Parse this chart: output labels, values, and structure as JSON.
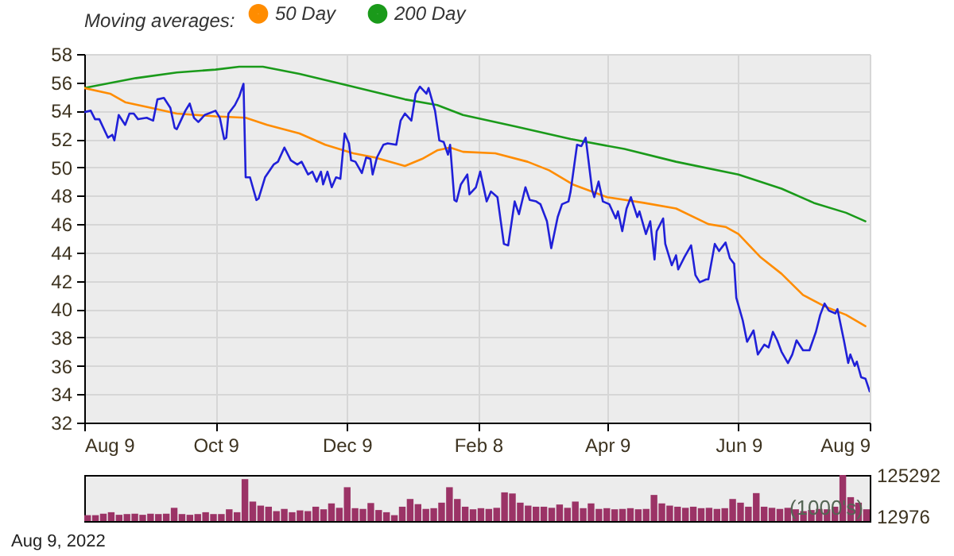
{
  "chart_data": [
    {
      "type": "line",
      "legend_title": "Moving averages:",
      "legend": "top",
      "grid": true,
      "xlim": [
        "2021-08-09",
        "2022-08-09"
      ],
      "xticks": [
        {
          "value": "2021-08-09",
          "label": "Aug 9"
        },
        {
          "value": "2021-10-09",
          "label": "Oct 9"
        },
        {
          "value": "2021-12-09",
          "label": "Dec 9"
        },
        {
          "value": "2022-02-08",
          "label": "Feb 8"
        },
        {
          "value": "2022-04-09",
          "label": "Apr 9"
        },
        {
          "value": "2022-06-09",
          "label": "Jun 9"
        },
        {
          "value": "2022-08-09",
          "label": "Aug 9"
        }
      ],
      "ylim": [
        32,
        58
      ],
      "yticks": [
        32,
        34,
        36,
        38,
        40,
        42,
        44,
        46,
        48,
        50,
        52,
        54,
        56,
        58
      ],
      "series": [
        {
          "color": "#2020d8",
          "x": [
            "2021-08-09",
            "2021-08-12",
            "2021-08-14",
            "2021-08-16",
            "2021-08-20",
            "2021-08-22",
            "2021-08-23",
            "2021-08-25",
            "2021-08-28",
            "2021-08-30",
            "2021-09-01",
            "2021-09-03",
            "2021-09-07",
            "2021-09-10",
            "2021-09-12",
            "2021-09-15",
            "2021-09-18",
            "2021-09-20",
            "2021-09-21",
            "2021-09-25",
            "2021-09-27",
            "2021-09-29",
            "2021-10-01",
            "2021-10-04",
            "2021-10-09",
            "2021-10-11",
            "2021-10-13",
            "2021-10-14",
            "2021-10-15",
            "2021-10-18",
            "2021-10-20",
            "2021-10-22",
            "2021-10-23",
            "2021-10-25",
            "2021-10-28",
            "2021-10-29",
            "2021-11-01",
            "2021-11-05",
            "2021-11-07",
            "2021-11-10",
            "2021-11-13",
            "2021-11-16",
            "2021-11-18",
            "2021-11-21",
            "2021-11-23",
            "2021-11-25",
            "2021-11-27",
            "2021-11-28",
            "2021-11-30",
            "2021-12-02",
            "2021-12-04",
            "2021-12-06",
            "2021-12-08",
            "2021-12-10",
            "2021-12-11",
            "2021-12-13",
            "2021-12-16",
            "2021-12-18",
            "2021-12-20",
            "2021-12-21",
            "2021-12-23",
            "2021-12-26",
            "2021-12-28",
            "2022-01-01",
            "2022-01-03",
            "2022-01-05",
            "2022-01-08",
            "2022-01-10",
            "2022-01-12",
            "2022-01-15",
            "2022-01-16",
            "2022-01-19",
            "2022-01-21",
            "2022-01-23",
            "2022-01-25",
            "2022-01-26",
            "2022-01-28",
            "2022-01-29",
            "2022-01-31",
            "2022-02-03",
            "2022-02-04",
            "2022-02-07",
            "2022-02-09",
            "2022-02-12",
            "2022-02-14",
            "2022-02-17",
            "2022-02-20",
            "2022-02-22",
            "2022-02-25",
            "2022-02-27",
            "2022-03-02",
            "2022-03-04",
            "2022-03-07",
            "2022-03-09",
            "2022-03-12",
            "2022-03-14",
            "2022-03-17",
            "2022-03-19",
            "2022-03-22",
            "2022-03-23",
            "2022-03-26",
            "2022-03-28",
            "2022-03-30",
            "2022-04-02",
            "2022-04-03",
            "2022-04-05",
            "2022-04-07",
            "2022-04-10",
            "2022-04-13",
            "2022-04-14",
            "2022-04-16",
            "2022-04-18",
            "2022-04-20",
            "2022-04-23",
            "2022-04-24",
            "2022-04-27",
            "2022-04-29",
            "2022-05-01",
            "2022-05-02",
            "2022-05-05",
            "2022-05-06",
            "2022-05-09",
            "2022-05-11",
            "2022-05-12",
            "2022-05-15",
            "2022-05-18",
            "2022-05-20",
            "2022-05-22",
            "2022-05-25",
            "2022-05-26",
            "2022-05-29",
            "2022-05-31",
            "2022-06-03",
            "2022-06-05",
            "2022-06-07",
            "2022-06-08",
            "2022-06-11",
            "2022-06-13",
            "2022-06-16",
            "2022-06-18",
            "2022-06-21",
            "2022-06-23",
            "2022-06-25",
            "2022-06-27",
            "2022-06-29",
            "2022-07-02",
            "2022-07-04",
            "2022-07-06",
            "2022-07-09",
            "2022-07-12",
            "2022-07-15",
            "2022-07-17",
            "2022-07-19",
            "2022-07-21",
            "2022-07-24",
            "2022-07-25",
            "2022-07-28",
            "2022-07-30",
            "2022-07-31",
            "2022-08-02",
            "2022-08-03",
            "2022-08-05",
            "2022-08-07",
            "2022-08-09"
          ],
          "values": [
            53.9,
            54.0,
            53.4,
            53.4,
            52.1,
            52.3,
            51.9,
            53.7,
            53.0,
            53.8,
            53.8,
            53.4,
            53.5,
            53.3,
            54.8,
            54.9,
            54.2,
            52.8,
            52.7,
            54.0,
            54.5,
            53.5,
            53.2,
            53.7,
            54.0,
            53.5,
            52.0,
            52.1,
            53.8,
            54.4,
            55.0,
            55.9,
            49.3,
            49.3,
            47.7,
            47.8,
            49.3,
            50.2,
            50.4,
            51.4,
            50.5,
            50.2,
            50.4,
            49.5,
            49.7,
            49.0,
            49.7,
            48.8,
            49.7,
            48.6,
            49.3,
            49.2,
            52.4,
            51.7,
            50.5,
            50.4,
            49.6,
            50.7,
            50.6,
            49.5,
            50.7,
            51.6,
            51.7,
            51.6,
            53.3,
            53.8,
            53.3,
            55.2,
            55.7,
            55.2,
            55.6,
            54.0,
            51.9,
            51.8,
            50.9,
            51.6,
            47.7,
            47.6,
            48.8,
            49.5,
            48.1,
            48.6,
            49.7,
            47.6,
            48.3,
            47.9,
            44.6,
            44.5,
            47.6,
            46.7,
            48.6,
            47.7,
            47.6,
            47.4,
            46.2,
            44.3,
            46.5,
            47.4,
            47.6,
            48.3,
            51.6,
            51.5,
            52.1,
            48.4,
            47.9,
            49.0,
            47.6,
            47.4,
            46.4,
            46.9,
            45.5,
            47.1,
            47.9,
            46.5,
            46.9,
            45.3,
            46.2,
            43.5,
            45.5,
            46.4,
            44.6,
            43.1,
            43.8,
            42.8,
            43.7,
            44.5,
            42.4,
            41.9,
            42.1,
            42.1,
            44.6,
            44.1,
            44.7,
            43.6,
            43.2,
            40.8,
            39.2,
            37.7,
            38.5,
            36.8,
            37.5,
            37.3,
            38.4,
            37.8,
            37.0,
            36.2,
            36.8,
            37.8,
            37.1,
            37.1,
            38.4,
            39.6,
            40.4,
            39.9,
            39.7,
            40.0,
            37.8,
            36.2,
            36.8,
            36.0,
            36.3,
            35.2,
            35.1,
            34.2
          ]
        },
        {
          "name": "50 Day",
          "color": "#ff8c00",
          "x": [
            "2021-08-09",
            "2021-08-21",
            "2021-08-28",
            "2021-09-09",
            "2021-09-21",
            "2021-10-09",
            "2021-10-23",
            "2021-11-02",
            "2021-11-17",
            "2021-11-29",
            "2021-12-12",
            "2021-12-22",
            "2022-01-05",
            "2022-01-13",
            "2022-01-20",
            "2022-01-26",
            "2022-02-01",
            "2022-02-16",
            "2022-03-03",
            "2022-03-13",
            "2022-03-24",
            "2022-04-09",
            "2022-04-26",
            "2022-05-11",
            "2022-05-26",
            "2022-06-03",
            "2022-06-09",
            "2022-06-19",
            "2022-06-29",
            "2022-07-09",
            "2022-07-19",
            "2022-07-29",
            "2022-08-07"
          ],
          "values": [
            55.6,
            55.2,
            54.6,
            54.2,
            53.8,
            53.6,
            53.5,
            53.0,
            52.4,
            51.6,
            51.0,
            50.7,
            50.1,
            50.6,
            51.2,
            51.4,
            51.1,
            51.0,
            50.4,
            49.8,
            48.8,
            47.9,
            47.5,
            47.1,
            46.0,
            45.8,
            45.3,
            43.7,
            42.5,
            41.0,
            40.2,
            39.6,
            38.8
          ]
        },
        {
          "name": "200 Day",
          "color": "#1a9a1a",
          "x": [
            "2021-08-09",
            "2021-09-02",
            "2021-09-21",
            "2021-10-09",
            "2021-10-20",
            "2021-10-31",
            "2021-11-17",
            "2021-12-09",
            "2022-01-05",
            "2022-01-20",
            "2022-02-01",
            "2022-02-25",
            "2022-03-23",
            "2022-04-17",
            "2022-05-11",
            "2022-06-09",
            "2022-06-29",
            "2022-07-14",
            "2022-07-29",
            "2022-08-07"
          ],
          "values": [
            55.6,
            56.3,
            56.7,
            56.9,
            57.1,
            57.1,
            56.6,
            55.8,
            54.8,
            54.4,
            53.7,
            52.9,
            52.0,
            51.3,
            50.4,
            49.5,
            48.5,
            47.5,
            46.8,
            46.2
          ]
        }
      ]
    },
    {
      "type": "bar",
      "ylabel": "(1000's)",
      "tick_labels": "y",
      "annotations": [
        "Aug 9, 2022"
      ],
      "color": "#9b3366",
      "ylim": [
        0,
        125292
      ],
      "yticks": [
        12976,
        125292
      ],
      "categories": [
        null,
        null,
        null,
        null,
        null,
        null,
        null,
        null,
        null,
        null,
        null,
        null,
        null,
        null,
        null,
        null,
        null,
        null,
        null,
        null,
        null,
        null,
        null,
        null,
        null,
        null,
        null,
        null,
        null,
        null,
        null,
        null,
        null,
        null,
        null,
        null,
        null,
        null,
        null,
        null,
        null,
        null,
        null,
        null,
        null,
        null,
        null,
        null,
        null,
        null,
        null,
        null,
        null,
        null,
        null,
        null,
        null,
        null,
        null,
        null,
        null,
        null,
        null,
        null,
        null,
        null,
        null,
        null,
        null,
        null,
        null,
        null,
        null,
        null,
        null,
        null,
        null,
        null,
        null,
        null,
        null,
        null,
        null,
        null,
        null,
        null,
        null,
        null,
        null,
        null,
        null,
        null,
        null,
        null,
        null,
        null,
        null,
        null,
        null,
        null
      ],
      "values": [
        16000,
        16000,
        20000,
        24000,
        17000,
        19000,
        20000,
        17000,
        20000,
        19000,
        20000,
        36000,
        19000,
        17000,
        19000,
        24000,
        19000,
        19000,
        32000,
        24000,
        114000,
        53000,
        42000,
        39000,
        27000,
        33000,
        24000,
        29000,
        27000,
        39000,
        32000,
        48000,
        36000,
        92000,
        35000,
        33000,
        49000,
        30000,
        24000,
        16000,
        39000,
        60000,
        46000,
        33000,
        35000,
        50000,
        92000,
        60000,
        39000,
        32000,
        35000,
        33000,
        36000,
        78000,
        75000,
        50000,
        42000,
        39000,
        39000,
        36000,
        45000,
        36000,
        53000,
        35000,
        48000,
        33000,
        35000,
        32000,
        33000,
        35000,
        32000,
        33000,
        71000,
        48000,
        42000,
        39000,
        36000,
        39000,
        35000,
        36000,
        33000,
        35000,
        60000,
        50000,
        39000,
        76000,
        39000,
        36000,
        33000,
        36000,
        32000,
        27000,
        30000,
        33000,
        32000,
        39000,
        125292,
        65000,
        50000,
        32000
      ]
    }
  ]
}
